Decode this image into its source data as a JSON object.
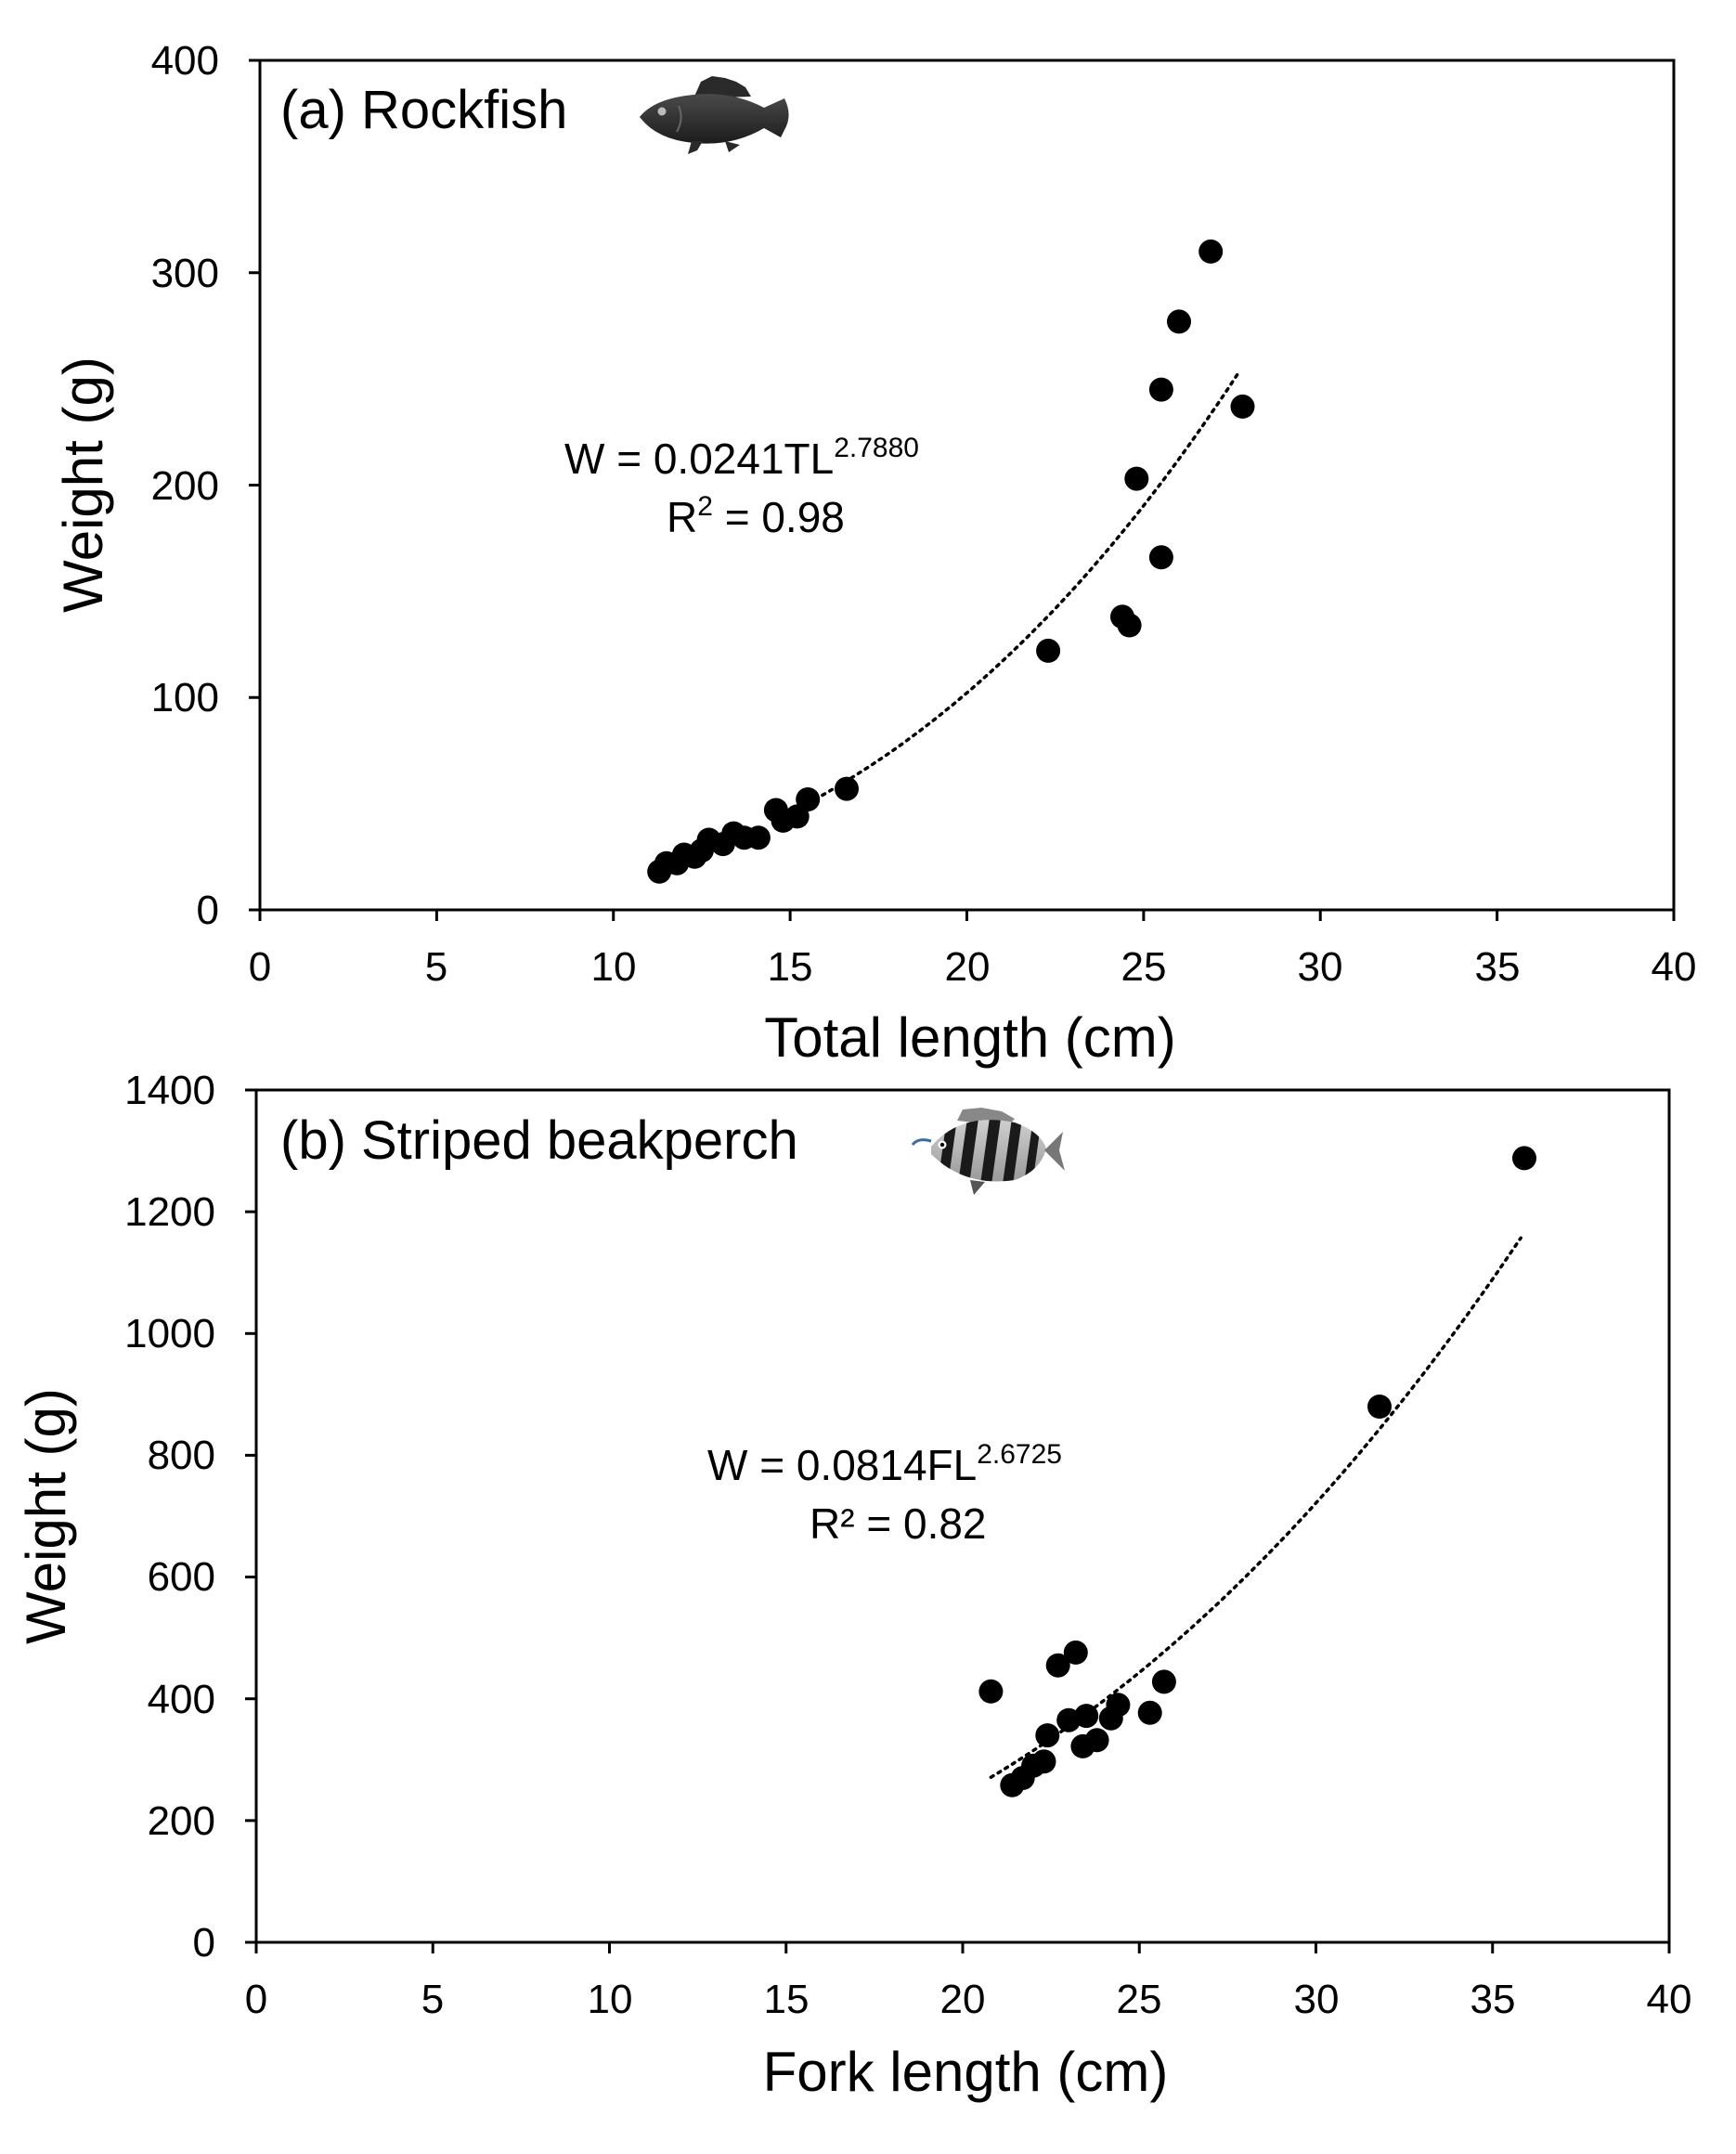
{
  "chart_data": [
    {
      "type": "scatter",
      "panel": "a",
      "title": "(a) Rockfish",
      "icon": "rockfish-icon",
      "xlabel": "Total length (cm)",
      "ylabel": "Weight (g)",
      "xlim": [
        0,
        40
      ],
      "ylim": [
        0,
        400
      ],
      "x_ticks": [
        0,
        5,
        10,
        15,
        20,
        25,
        30,
        35,
        40
      ],
      "y_ticks": [
        0,
        100,
        200,
        300,
        400
      ],
      "grid": false,
      "equation": {
        "prefix": "W = 0.0241TL",
        "exponent": "2.7880",
        "r2": "R",
        "r2_sup": "2",
        "r2_value": " = 0.98"
      },
      "trendline": {
        "style": "dotted",
        "a": 0.0241,
        "b": 2.788,
        "x_range": [
          15.5,
          27.7
        ]
      },
      "series": [
        {
          "name": "Rockfish",
          "points": [
            [
              11.3,
              18
            ],
            [
              11.5,
              22
            ],
            [
              11.8,
              22
            ],
            [
              12.0,
              26
            ],
            [
              12.3,
              25
            ],
            [
              12.5,
              28
            ],
            [
              12.7,
              33
            ],
            [
              13.1,
              31
            ],
            [
              13.4,
              36
            ],
            [
              13.7,
              34
            ],
            [
              14.1,
              34
            ],
            [
              14.6,
              47
            ],
            [
              14.8,
              42
            ],
            [
              15.2,
              44
            ],
            [
              15.5,
              52
            ],
            [
              16.6,
              57
            ],
            [
              22.3,
              122
            ],
            [
              24.4,
              138
            ],
            [
              24.6,
              134
            ],
            [
              24.8,
              203
            ],
            [
              25.5,
              166
            ],
            [
              25.5,
              245
            ],
            [
              26.0,
              277
            ],
            [
              26.9,
              310
            ],
            [
              27.8,
              237
            ]
          ]
        }
      ]
    },
    {
      "type": "scatter",
      "panel": "b",
      "title": "(b) Striped beakperch",
      "icon": "striped-beakperch-icon",
      "xlabel": "Fork length (cm)",
      "ylabel": "Weight (g)",
      "xlim": [
        0,
        40
      ],
      "ylim": [
        0,
        1400
      ],
      "x_ticks": [
        0,
        5,
        10,
        15,
        20,
        25,
        30,
        35,
        40
      ],
      "y_ticks": [
        0,
        200,
        400,
        600,
        800,
        1000,
        1200,
        1400
      ],
      "grid": false,
      "equation": {
        "prefix": "W = 0.0814FL",
        "exponent": "2.6725",
        "r2": "R",
        "r2_sup": "²",
        "r2_value": " = 0.82"
      },
      "trendline": {
        "style": "dotted",
        "a": 0.0814,
        "b": 2.6725,
        "x_range": [
          20.8,
          35.8
        ]
      },
      "series": [
        {
          "name": "Striped beakperch",
          "points": [
            [
              20.8,
              412
            ],
            [
              21.4,
              258
            ],
            [
              21.7,
              270
            ],
            [
              22.0,
              290
            ],
            [
              22.3,
              297
            ],
            [
              22.4,
              340
            ],
            [
              22.7,
              455
            ],
            [
              23.0,
              365
            ],
            [
              23.2,
              476
            ],
            [
              23.4,
              322
            ],
            [
              23.5,
              372
            ],
            [
              23.8,
              332
            ],
            [
              24.2,
              368
            ],
            [
              24.4,
              390
            ],
            [
              25.3,
              377
            ],
            [
              25.7,
              428
            ],
            [
              31.8,
              880
            ],
            [
              35.9,
              1288
            ]
          ]
        }
      ]
    }
  ]
}
